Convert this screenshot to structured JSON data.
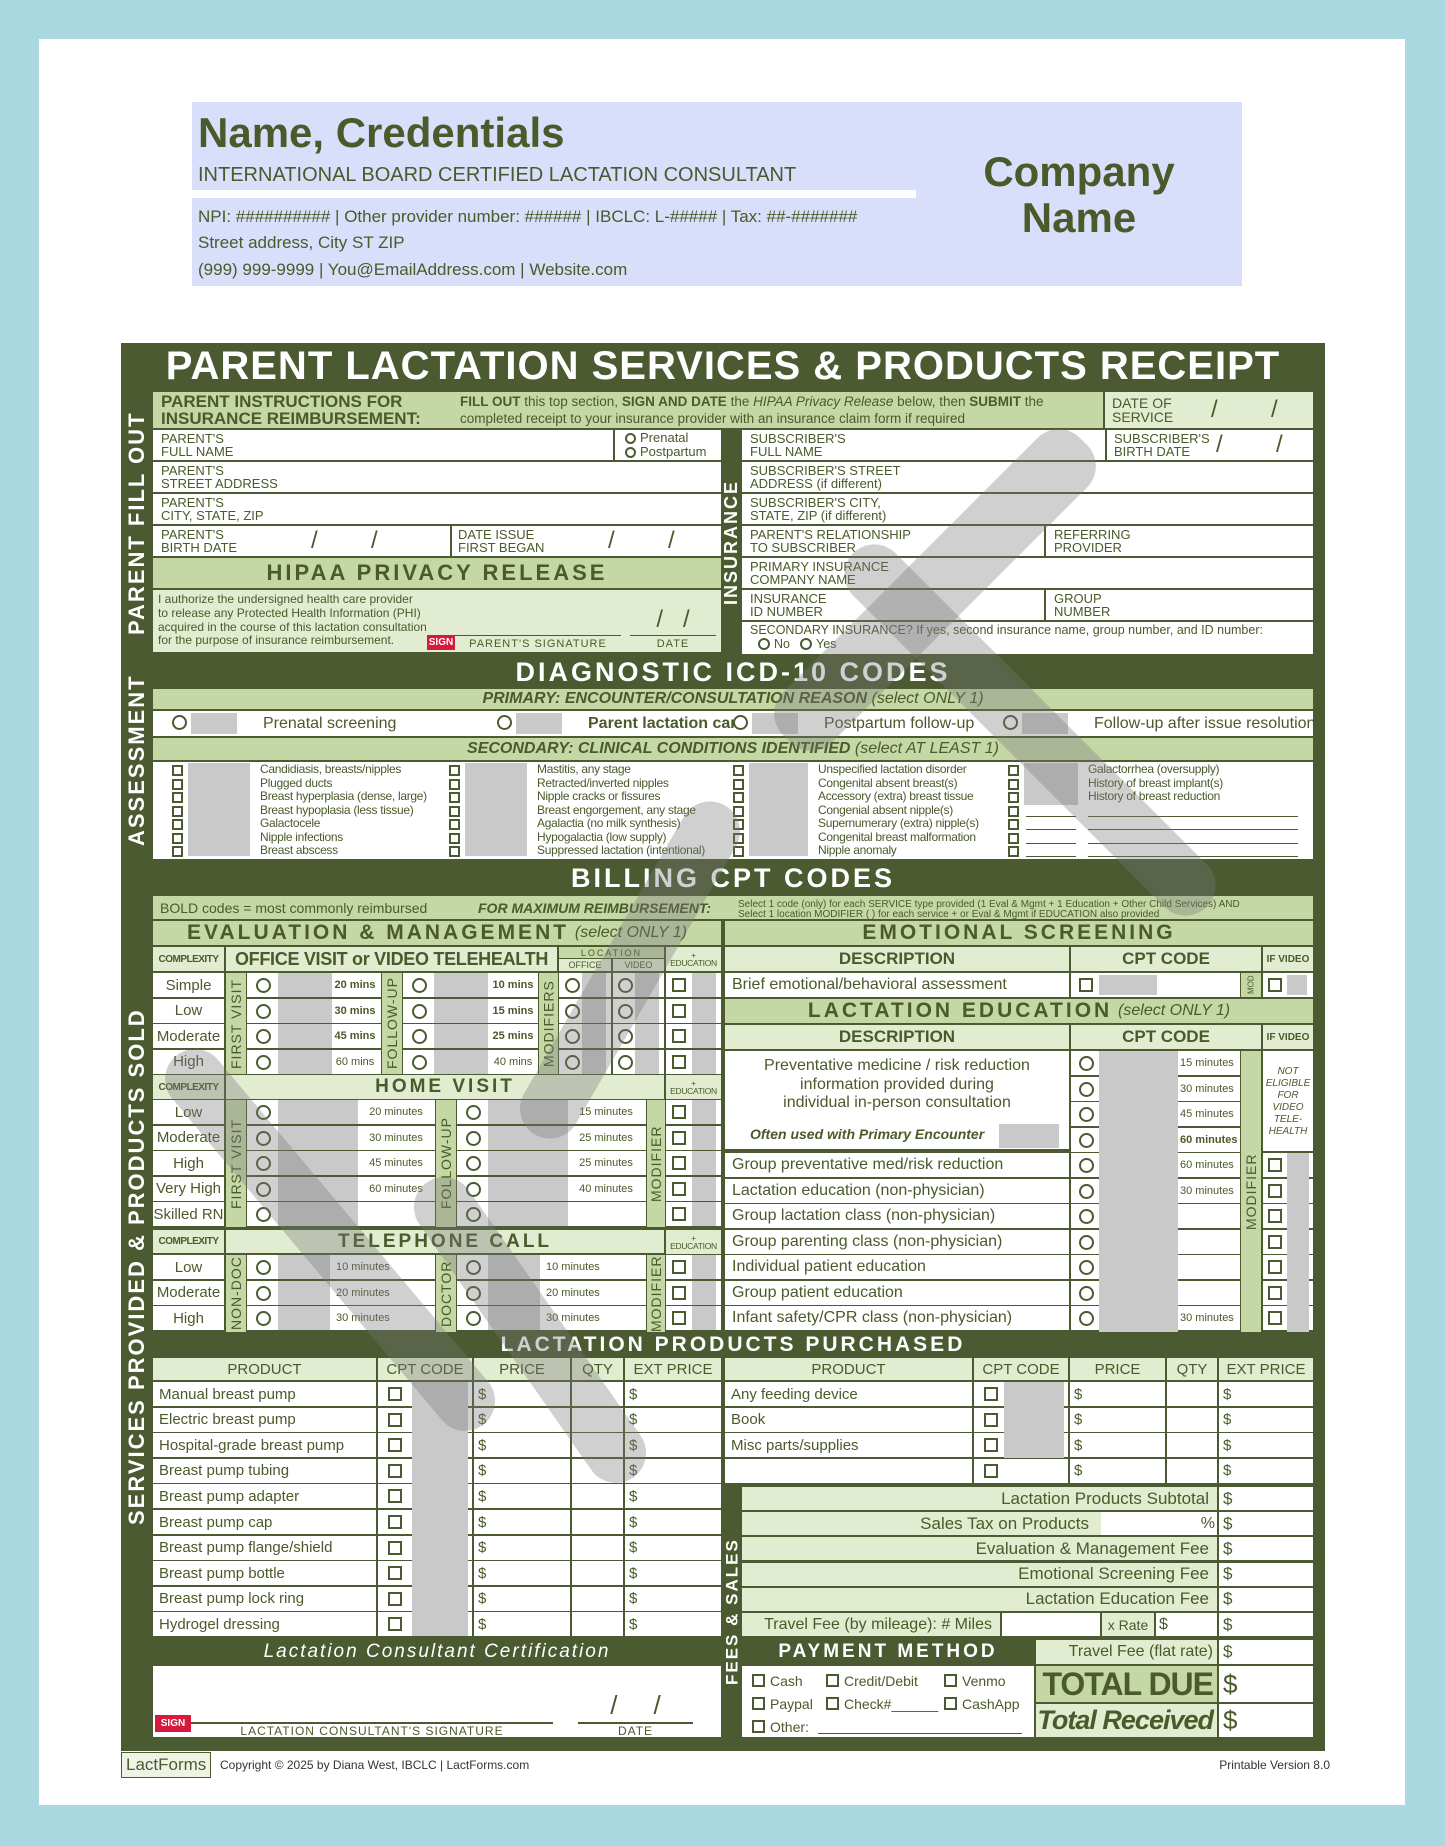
{
  "header": {
    "name": "Name, Credentials",
    "credential_line": "INTERNATIONAL BOARD CERTIFIED LACTATION CONSULTANT",
    "ids": "NPI: ########## | Other provider number: ###### | IBCLC: L-##### | Tax:  ##-#######",
    "address": "Street address, City ST ZIP",
    "contact": "(999) 999-9999 | You@EmailAddress.com | Website.com",
    "company": "Company\nName"
  },
  "title": "PARENT LACTATION SERVICES & PRODUCTS RECEIPT",
  "side_labels": {
    "parent": "PARENT FILL OUT",
    "insurance": "INSURANCE",
    "assessment": "ASSESSMENT",
    "services": "SERVICES PROVIDED & PRODUCTS SOLD",
    "fees": "FEES & SALES"
  },
  "instructions": {
    "heading": "PARENT INSTRUCTIONS FOR\nINSURANCE REIMBURSEMENT:",
    "segments": [
      [
        "b",
        "FILL OUT"
      ],
      [
        "n",
        " this top section, "
      ],
      [
        "b",
        "SIGN AND DATE"
      ],
      [
        "n",
        " the "
      ],
      [
        "i",
        "HIPAA Privacy Release"
      ],
      [
        "n",
        " below, then "
      ],
      [
        "b",
        "SUBMIT"
      ],
      [
        "n",
        " the completed receipt to your insurance provider with an insurance claim form if required"
      ]
    ]
  },
  "date_of_service": "DATE OF\nSERVICE",
  "date_slashes": "/        /",
  "parent": {
    "full_name": "PARENT'S\nFULL NAME",
    "prenatal": "Prenatal",
    "postpartum": "Postpartum",
    "street": "PARENT'S\nSTREET ADDRESS",
    "city": "PARENT'S\nCITY, STATE, ZIP",
    "birth": "PARENT'S\nBIRTH DATE",
    "issue": "DATE ISSUE\nFIRST BEGAN"
  },
  "hipaa": {
    "title": "HIPAA PRIVACY RELEASE",
    "text": "I authorize the undersigned health care provider\nto release any Protected Health Information (PHI)\nacquired in the course of this lactation consultation\nfor the purpose of insurance reimbursement.",
    "sign": "SIGN",
    "signature": "PARENT'S SIGNATURE",
    "date": "DATE",
    "slashes": "/   /"
  },
  "insurance": {
    "full_name": "SUBSCRIBER'S\nFULL NAME",
    "birth": "SUBSCRIBER'S\nBIRTH DATE",
    "street": "SUBSCRIBER'S STREET\nADDRESS (if different)",
    "city": "SUBSCRIBER'S CITY,\nSTATE, ZIP (if different)",
    "relationship": "PARENT'S RELATIONSHIP\nTO SUBSCRIBER",
    "referring": "REFERRING\nPROVIDER",
    "company": "PRIMARY INSURANCE\nCOMPANY NAME",
    "id": "INSURANCE\nID NUMBER",
    "group": "GROUP\nNUMBER",
    "secondary": "SECONDARY INSURANCE?  If yes, second insurance name, group number, and ID number:",
    "no": "No",
    "yes": "Yes"
  },
  "icd": {
    "title": "DIAGNOSTIC ICD-10 CODES",
    "primary_header": "PRIMARY:  ENCOUNTER/CONSULTATION REASON",
    "primary_note": "(select ONLY 1)",
    "primary": [
      "Prenatal screening",
      "Parent lactation care",
      "Postpartum follow-up",
      "Follow-up after issue resolution"
    ],
    "secondary_header": "SECONDARY:  CLINICAL CONDITIONS IDENTIFIED",
    "secondary_note": "(select AT LEAST 1)",
    "secondary": [
      [
        "Candidiasis, breasts/nipples",
        "Plugged ducts",
        "Breast hyperplasia (dense, large)",
        "Breast hypoplasia (less tissue)",
        "Galactocele",
        "Nipple infections",
        "Breast abscess"
      ],
      [
        "Mastitis, any stage",
        "Retracted/inverted nipples",
        "Nipple cracks or fissures",
        "Breast engorgement, any stage",
        "Agalactia (no milk synthesis)",
        "Hypogalactia (low supply)",
        "Suppressed lactation (intentional)"
      ],
      [
        "Unspecified lactation disorder",
        "Congenital absent breast(s)",
        "Accessory (extra) breast tissue",
        "Congenial absent nipple(s)",
        "Supernumerary (extra) nipple(s)",
        "Congenital breast malformation",
        "Nipple anomaly"
      ],
      [
        "Galactorrhea (oversupply)",
        "History of breast implant(s)",
        "History of breast reduction"
      ]
    ]
  },
  "billing": {
    "title": "BILLING CPT CODES",
    "bold_note": "BOLD codes = most commonly reimbursed",
    "max_label": "FOR MAXIMUM REIMBURSEMENT:",
    "max_line1": "Select 1 code (only) for each SERVICE type provided (1 Eval & Mgmt + 1 Education + Other Child Services) AND",
    "max_line2": "Select 1 location MODIFIER (           ) for each service +      or Eval & Mgmt if EDUCATION also provided"
  },
  "em": {
    "title": "EVALUATION & MANAGEMENT",
    "note": "(select ONLY 1)",
    "complexity": "COMPLEXITY",
    "office_title": "OFFICE VISIT or VIDEO TELEHEALTH",
    "location": "LOCATION",
    "office": "OFFICE",
    "video": "VIDEO",
    "education": "+\nEDUCATION",
    "first_visit": "FIRST VISIT",
    "follow_up": "FOLLOW-UP",
    "modifiers": "MODIFIERS",
    "modifier": "MODIFIER",
    "non_doc": "NON-DOC",
    "doctor": "DOCTOR",
    "office_rows": [
      {
        "level": "Simple",
        "first": "20 mins",
        "follow": "10 mins"
      },
      {
        "level": "Low",
        "first": "30 mins",
        "follow": "15 mins"
      },
      {
        "level": "Moderate",
        "first": "45 mins",
        "follow": "25 mins"
      },
      {
        "level": "High",
        "first": "60 mins",
        "follow": "40 mins"
      }
    ],
    "home_title": "HOME VISIT",
    "home_rows": [
      {
        "level": "Low",
        "first": "20 minutes",
        "follow": "15 minutes"
      },
      {
        "level": "Moderate",
        "first": "30 minutes",
        "follow": "25 minutes"
      },
      {
        "level": "High",
        "first": "45 minutes",
        "follow": "25 minutes"
      },
      {
        "level": "Very High",
        "first": "60 minutes",
        "follow": "40 minutes"
      },
      {
        "level": "Skilled RN",
        "first": "",
        "follow": ""
      }
    ],
    "phone_title": "TELEPHONE CALL",
    "phone_rows": [
      {
        "level": "Low",
        "first": "10 minutes",
        "follow": "10 minutes"
      },
      {
        "level": "Moderate",
        "first": "20 minutes",
        "follow": "20 minutes"
      },
      {
        "level": "High",
        "first": "30 minutes",
        "follow": "30 minutes"
      }
    ]
  },
  "emotional": {
    "title": "EMOTIONAL SCREENING",
    "description": "DESCRIPTION",
    "cpt": "CPT CODE",
    "if_video": "IF VIDEO",
    "row": "Brief emotional/behavioral assessment",
    "mod": "MOD"
  },
  "education": {
    "title": "LACTATION EDUCATION",
    "note": "(select ONLY 1)",
    "description": "DESCRIPTION",
    "cpt": "CPT CODE",
    "if_video": "IF VIDEO",
    "preventative": "Preventative medicine / risk reduction\ninformation provided during\nindividual in-person consultation",
    "often": "Often used with Primary Encounter",
    "not_eligible": "NOT\nELIGIBLE\nFOR\nVIDEO\nTELE-\nHEALTH",
    "modifier": "MODIFIER",
    "prev_minutes": [
      "15 minutes",
      "30 minutes",
      "45 minutes",
      "60 minutes"
    ],
    "rows": [
      {
        "label": "Group preventative med/risk reduction",
        "minutes": "60 minutes"
      },
      {
        "label": "Lactation education (non-physician)",
        "minutes": "30 minutes"
      },
      {
        "label": "Group lactation class (non-physician)",
        "minutes": ""
      },
      {
        "label": "Group parenting class (non-physician)",
        "minutes": ""
      },
      {
        "label": "Individual patient education",
        "minutes": ""
      },
      {
        "label": "Group patient education",
        "minutes": ""
      },
      {
        "label": "Infant safety/CPR class (non-physician)",
        "minutes": "30 minutes"
      }
    ]
  },
  "products": {
    "title": "LACTATION PRODUCTS PURCHASED",
    "columns": [
      "PRODUCT",
      "CPT CODE",
      "PRICE",
      "QTY",
      "EXT PRICE"
    ],
    "dollar": "$",
    "left": [
      "Manual breast pump",
      "Electric breast pump",
      "Hospital-grade breast pump",
      "Breast pump tubing",
      "Breast pump adapter",
      "Breast pump cap",
      "Breast pump flange/shield",
      "Breast pump bottle",
      "Breast pump lock ring",
      "Hydrogel dressing"
    ],
    "right": [
      "Any feeding device",
      "Book",
      "Misc parts/supplies",
      ""
    ]
  },
  "fees": {
    "subtotal": "Lactation Products Subtotal",
    "tax": "Sales Tax on Products",
    "percent": "%",
    "em": "Evaluation & Management Fee",
    "emotional": "Emotional Screening Fee",
    "education": "Lactation Education Fee",
    "travel_mileage": "Travel Fee (by mileage):  # Miles",
    "rate": "x Rate",
    "travel_flat": "Travel Fee (flat rate)",
    "total_due": "TOTAL DUE",
    "total_received": "Total Received"
  },
  "payment": {
    "title": "PAYMENT METHOD",
    "options": [
      "Cash",
      "Credit/Debit",
      "Venmo",
      "Paypal",
      "Check#______",
      "CashApp",
      "Other:"
    ]
  },
  "certification": {
    "title": "Lactation Consultant Certification",
    "sign": "SIGN",
    "signature": "LACTATION CONSULTANT'S SIGNATURE",
    "date": "DATE",
    "slashes": "/     /"
  },
  "footer": {
    "logo": "LactForms",
    "copyright": "Copyright © 2025 by Diana West, IBCLC | LactForms.com",
    "version": "Printable Version 8.0"
  },
  "colors": {
    "dark_green": "#4b5a30",
    "light_green": "#c6d7a6",
    "pale_green": "#e2ecd0",
    "header_blue": "#d9defb",
    "sign_red": "#d6193d",
    "background": "#a9d8e1"
  }
}
